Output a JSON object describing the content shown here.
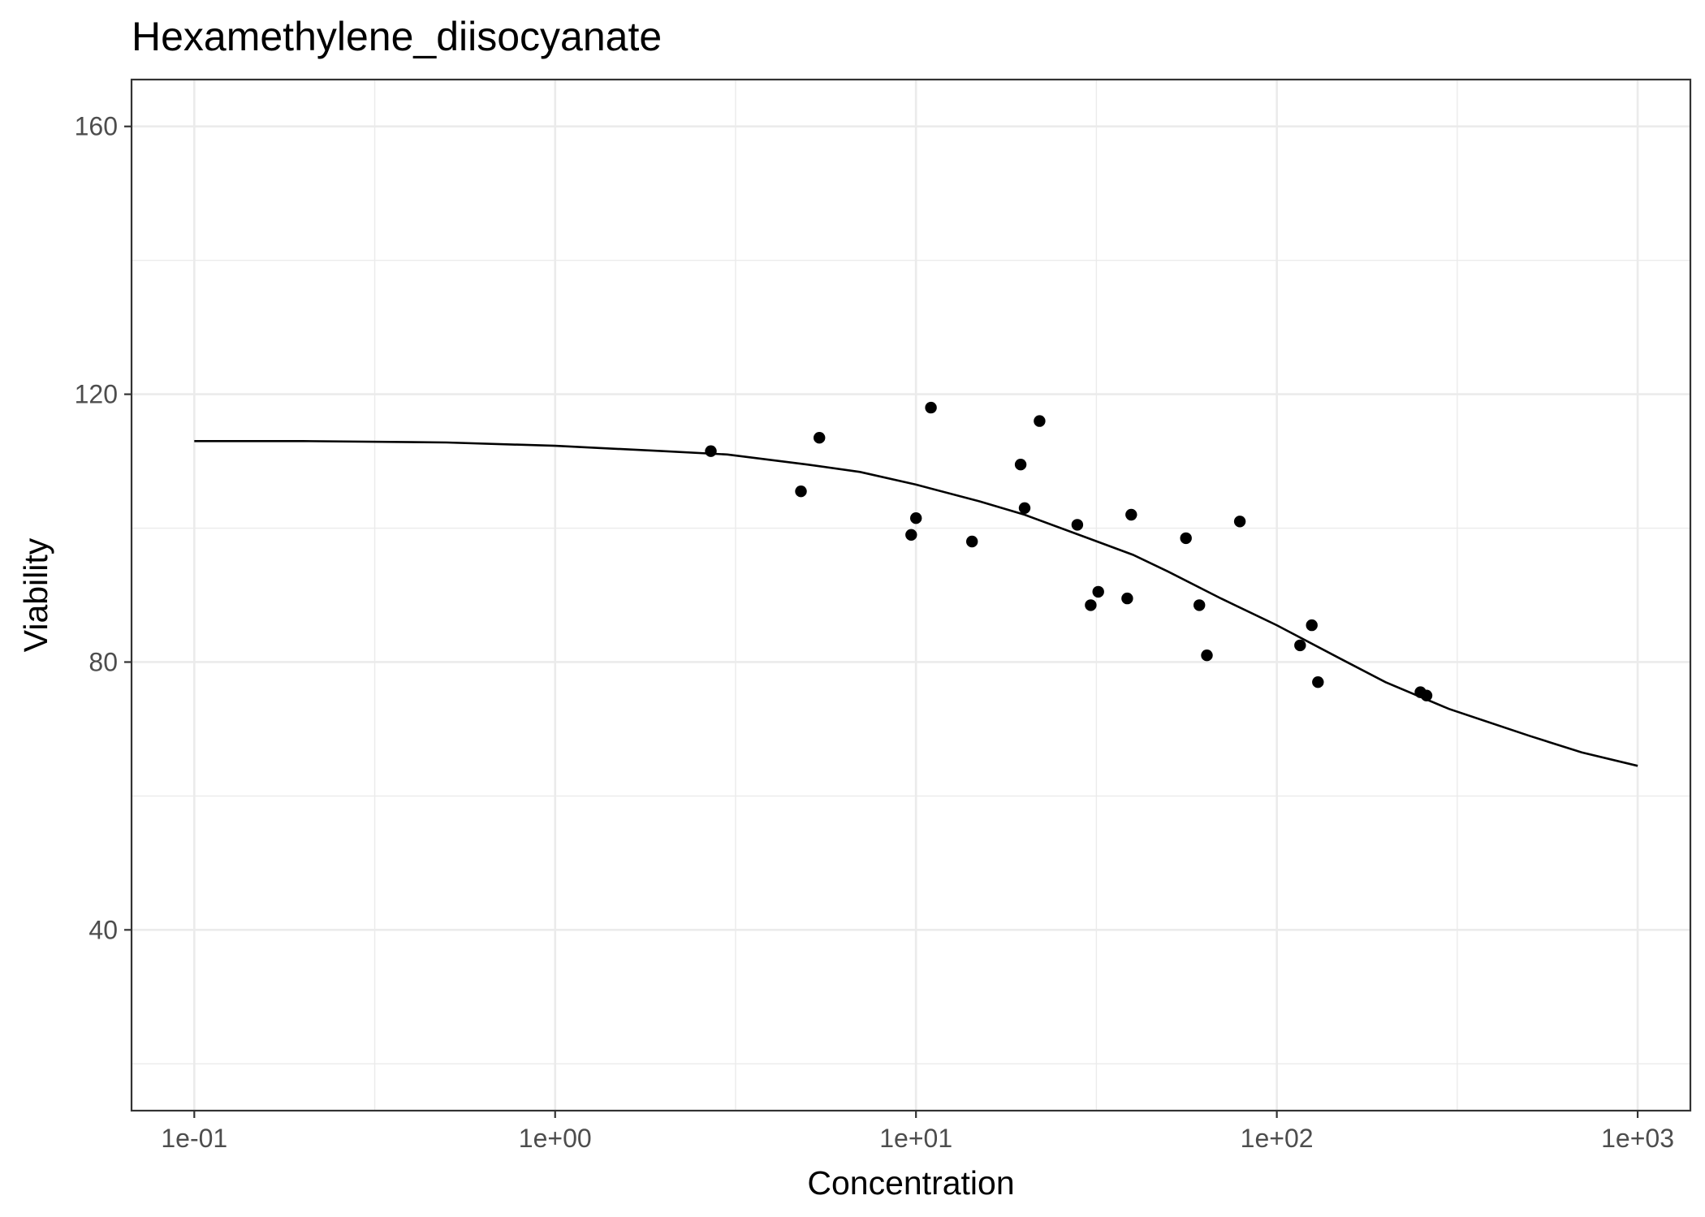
{
  "chart_data": {
    "type": "scatter",
    "title": "Hexamethylene_diisocyanate",
    "xlabel": "Concentration",
    "ylabel": "Viability",
    "x_scale": "log10",
    "xlim": [
      0.067,
      1400
    ],
    "ylim": [
      13,
      167
    ],
    "x_ticks": [
      0.1,
      1,
      10,
      100,
      1000
    ],
    "x_tick_labels": [
      "1e-01",
      "1e+00",
      "1e+01",
      "1e+02",
      "1e+03"
    ],
    "y_ticks": [
      40,
      80,
      120,
      160
    ],
    "y_tick_labels": [
      "40",
      "80",
      "120",
      "160"
    ],
    "grid": true,
    "legend": "none",
    "points": {
      "x": [
        2.7,
        4.8,
        5.4,
        9.7,
        10,
        11,
        14.3,
        19.5,
        20,
        22,
        28,
        30.5,
        32,
        38.5,
        39.5,
        56,
        61,
        64,
        79,
        116,
        125,
        130,
        250,
        260
      ],
      "y": [
        111.5,
        105.5,
        113.5,
        99,
        101.5,
        118,
        98,
        109.5,
        103,
        116,
        100.5,
        88.5,
        90.5,
        89.5,
        102,
        98.5,
        88.5,
        81,
        101,
        82.5,
        85.5,
        77,
        75.5,
        75
      ]
    },
    "fit_curve": {
      "x": [
        0.1,
        0.2,
        0.5,
        1,
        2,
        3,
        5,
        7,
        10,
        15,
        20,
        30,
        40,
        50,
        70,
        100,
        150,
        200,
        300,
        500,
        700,
        1000
      ],
      "y": [
        113,
        113,
        112.8,
        112.3,
        111.5,
        111,
        109.5,
        108.4,
        106.5,
        104,
        102,
        98.5,
        96,
        93.5,
        89.5,
        85.5,
        80.5,
        77,
        73,
        69,
        66.5,
        64.5
      ]
    }
  }
}
